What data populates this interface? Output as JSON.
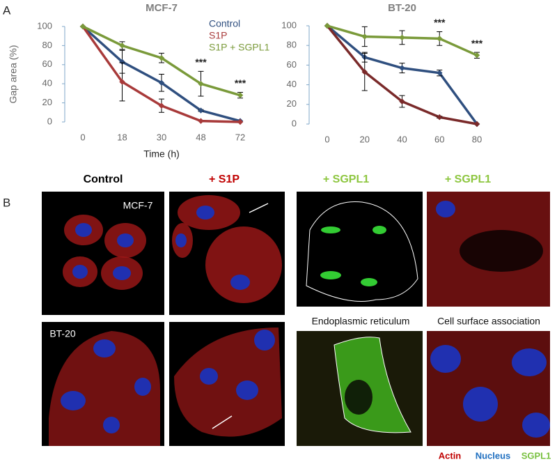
{
  "chart_data": [
    {
      "type": "line",
      "title": "MCF-7",
      "y_label": "Gap area (%)",
      "x_label": "Time (h)",
      "categories": [
        "0",
        "18",
        "30",
        "48",
        "72"
      ],
      "series": [
        {
          "name": "Control",
          "color": "#2f4f7f",
          "values": [
            100,
            63,
            41,
            12,
            1
          ],
          "errors": [
            0,
            12,
            9,
            1,
            0
          ]
        },
        {
          "name": "S1P",
          "color": "#a83a3a",
          "values": [
            100,
            42,
            17,
            1,
            0
          ],
          "errors": [
            0,
            20,
            7,
            0,
            0
          ]
        },
        {
          "name": "S1P + SGPL1",
          "color": "#7a9a3a",
          "values": [
            100,
            80,
            67,
            40,
            28
          ],
          "errors": [
            0,
            4,
            5,
            13,
            3
          ]
        }
      ],
      "annotations": [
        {
          "text": "***",
          "x": "48"
        },
        {
          "text": "***",
          "x": "72"
        }
      ],
      "ylim": [
        0,
        100
      ],
      "yticks": [
        0,
        20,
        40,
        60,
        80,
        100
      ]
    },
    {
      "type": "line",
      "title": "BT-20",
      "categories": [
        "0",
        "20",
        "40",
        "60",
        "80"
      ],
      "series": [
        {
          "color": "#2f4f7f",
          "values": [
            100,
            68,
            57,
            52,
            0
          ],
          "errors": [
            0,
            5,
            5,
            3,
            0
          ]
        },
        {
          "color": "#7a2a2a",
          "values": [
            100,
            53,
            23,
            7,
            0
          ],
          "errors": [
            0,
            19,
            6,
            1,
            0
          ]
        },
        {
          "color": "#7a9a3a",
          "values": [
            100,
            89,
            88,
            87,
            70
          ],
          "errors": [
            0,
            10,
            7,
            7,
            3
          ]
        }
      ],
      "annotations": [
        {
          "text": "***",
          "x": "60"
        },
        {
          "text": "***",
          "x": "80"
        }
      ],
      "ylim": [
        0,
        100
      ],
      "yticks": [
        0,
        20,
        40,
        60,
        80,
        100
      ]
    }
  ],
  "figure": {
    "panel_labels": [
      "A",
      "B"
    ],
    "columns": [
      "Control",
      "+ S1P",
      "+ SGPL1",
      "+ SGPL1"
    ],
    "image_labels": [
      "MCF-7",
      "BT-20"
    ],
    "captions": [
      "Endoplasmic reticulum",
      "Cell surface association"
    ],
    "stain_legend": [
      "Actin",
      "Nucleus",
      "SGPL1"
    ]
  }
}
